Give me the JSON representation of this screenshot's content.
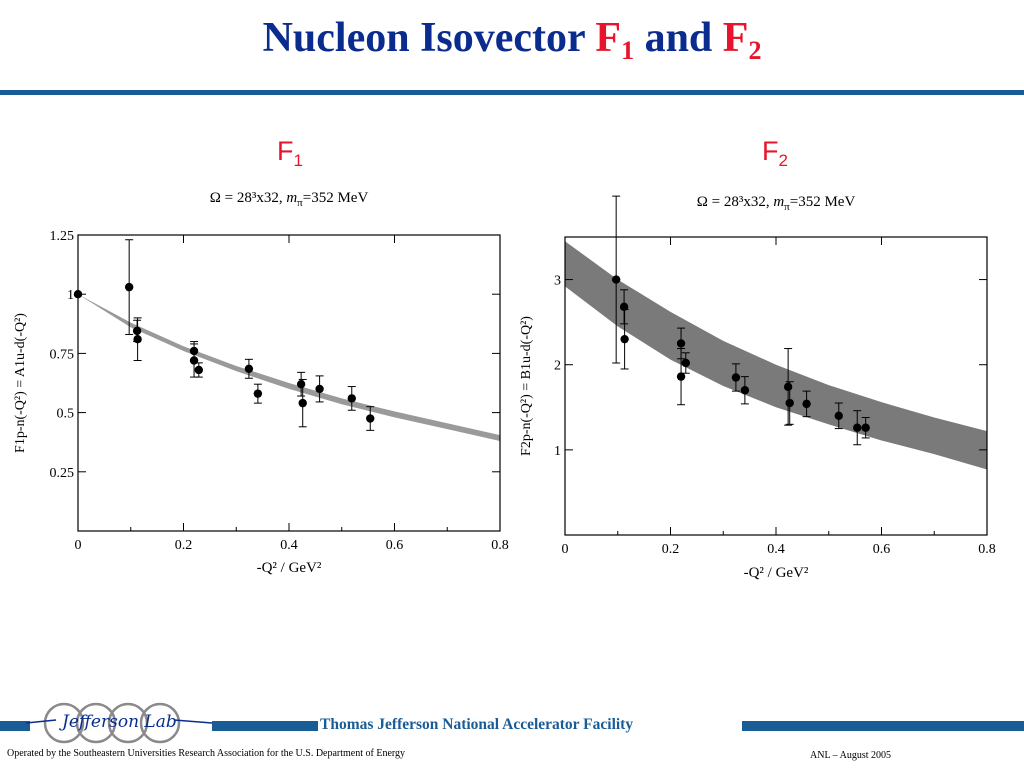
{
  "title": {
    "prefix": "Nucleon Isovector ",
    "f1_letter": "F",
    "f1_sub": "1",
    "middle": " and ",
    "f2_letter": "F",
    "f2_sub": "2"
  },
  "colors": {
    "title": "#0b2c8f",
    "highlight": "#e8142b",
    "accent_bar": "#1a5c96",
    "band_f1": "#9a9a9a",
    "band_f2": "#7a7a7a"
  },
  "footer": {
    "lab_logo_text": "Jefferson Lab",
    "facility": "Thomas Jefferson National Accelerator Facility",
    "operated_by": "Operated by the Southeastern Universities Research Association for the U.S. Department of  Energy",
    "event": "ANL – August  2005"
  },
  "chart_data": [
    {
      "type": "scatter",
      "panel_label": "F",
      "panel_label_sub": "1",
      "subtitle": "Ω = 28³x32, mπ=352 MeV",
      "xlabel": "-Q² / GeV²",
      "ylabel": "F1p-n(-Q²) = A1u-d(-Q²)",
      "xlim": [
        0,
        0.8
      ],
      "ylim": [
        0,
        1.25
      ],
      "xticks": [
        0,
        0.2,
        0.4,
        0.6,
        0.8
      ],
      "xtick_labels": [
        "0",
        "0.2",
        "0.4",
        "0.6",
        "0.8"
      ],
      "yticks": [
        0.25,
        0.5,
        0.75,
        1,
        1.25
      ],
      "ytick_labels": [
        "0.25",
        "0.5",
        "0.75",
        "1",
        "1.25"
      ],
      "grid": false,
      "points": [
        {
          "x": 0.0,
          "y": 1.0,
          "err": 0.0
        },
        {
          "x": 0.097,
          "y": 1.03,
          "err": 0.2
        },
        {
          "x": 0.112,
          "y": 0.845,
          "err": 0.045
        },
        {
          "x": 0.113,
          "y": 0.81,
          "err": 0.09
        },
        {
          "x": 0.22,
          "y": 0.76,
          "err": 0.04
        },
        {
          "x": 0.22,
          "y": 0.72,
          "err": 0.07
        },
        {
          "x": 0.229,
          "y": 0.68,
          "err": 0.03
        },
        {
          "x": 0.324,
          "y": 0.685,
          "err": 0.04
        },
        {
          "x": 0.341,
          "y": 0.58,
          "err": 0.04
        },
        {
          "x": 0.423,
          "y": 0.62,
          "err": 0.05
        },
        {
          "x": 0.426,
          "y": 0.54,
          "err": 0.1
        },
        {
          "x": 0.458,
          "y": 0.6,
          "err": 0.055
        },
        {
          "x": 0.519,
          "y": 0.56,
          "err": 0.05
        },
        {
          "x": 0.554,
          "y": 0.475,
          "err": 0.05
        }
      ],
      "band": {
        "x": [
          0.0,
          0.1,
          0.2,
          0.3,
          0.4,
          0.5,
          0.6,
          0.7,
          0.8
        ],
        "lower": [
          1.0,
          0.86,
          0.76,
          0.675,
          0.6,
          0.535,
          0.48,
          0.43,
          0.38
        ],
        "upper": [
          1.0,
          0.88,
          0.78,
          0.697,
          0.625,
          0.56,
          0.505,
          0.455,
          0.405
        ]
      }
    },
    {
      "type": "scatter",
      "panel_label": "F",
      "panel_label_sub": "2",
      "subtitle": "Ω = 28³x32, mπ=352 MeV",
      "xlabel": "-Q² / GeV²",
      "ylabel": "F2p-n(-Q²) = B1u-d(-Q²)",
      "xlim": [
        0,
        0.8
      ],
      "ylim": [
        0,
        3.5
      ],
      "xticks": [
        0,
        0.2,
        0.4,
        0.6,
        0.8
      ],
      "xtick_labels": [
        "0",
        "0.2",
        "0.4",
        "0.6",
        "0.8"
      ],
      "yticks": [
        1,
        2,
        3
      ],
      "ytick_labels": [
        "1",
        "2",
        "3"
      ],
      "grid": false,
      "points": [
        {
          "x": 0.097,
          "y": 3.0,
          "err": 0.98
        },
        {
          "x": 0.112,
          "y": 2.68,
          "err": 0.2
        },
        {
          "x": 0.113,
          "y": 2.3,
          "err": 0.35
        },
        {
          "x": 0.22,
          "y": 2.25,
          "err": 0.18
        },
        {
          "x": 0.22,
          "y": 1.86,
          "err": 0.33
        },
        {
          "x": 0.229,
          "y": 2.02,
          "err": 0.12
        },
        {
          "x": 0.324,
          "y": 1.85,
          "err": 0.16
        },
        {
          "x": 0.341,
          "y": 1.7,
          "err": 0.16
        },
        {
          "x": 0.423,
          "y": 1.74,
          "err": 0.45
        },
        {
          "x": 0.426,
          "y": 1.55,
          "err": 0.25
        },
        {
          "x": 0.458,
          "y": 1.54,
          "err": 0.15
        },
        {
          "x": 0.519,
          "y": 1.4,
          "err": 0.15
        },
        {
          "x": 0.554,
          "y": 1.26,
          "err": 0.2
        },
        {
          "x": 0.57,
          "y": 1.26,
          "err": 0.12
        }
      ],
      "band": {
        "x": [
          0.0,
          0.1,
          0.2,
          0.3,
          0.4,
          0.5,
          0.6,
          0.7,
          0.8
        ],
        "lower": [
          2.92,
          2.45,
          2.06,
          1.75,
          1.5,
          1.3,
          1.11,
          0.95,
          0.77
        ],
        "upper": [
          3.45,
          3.0,
          2.62,
          2.28,
          2.0,
          1.76,
          1.56,
          1.38,
          1.22
        ]
      }
    }
  ]
}
